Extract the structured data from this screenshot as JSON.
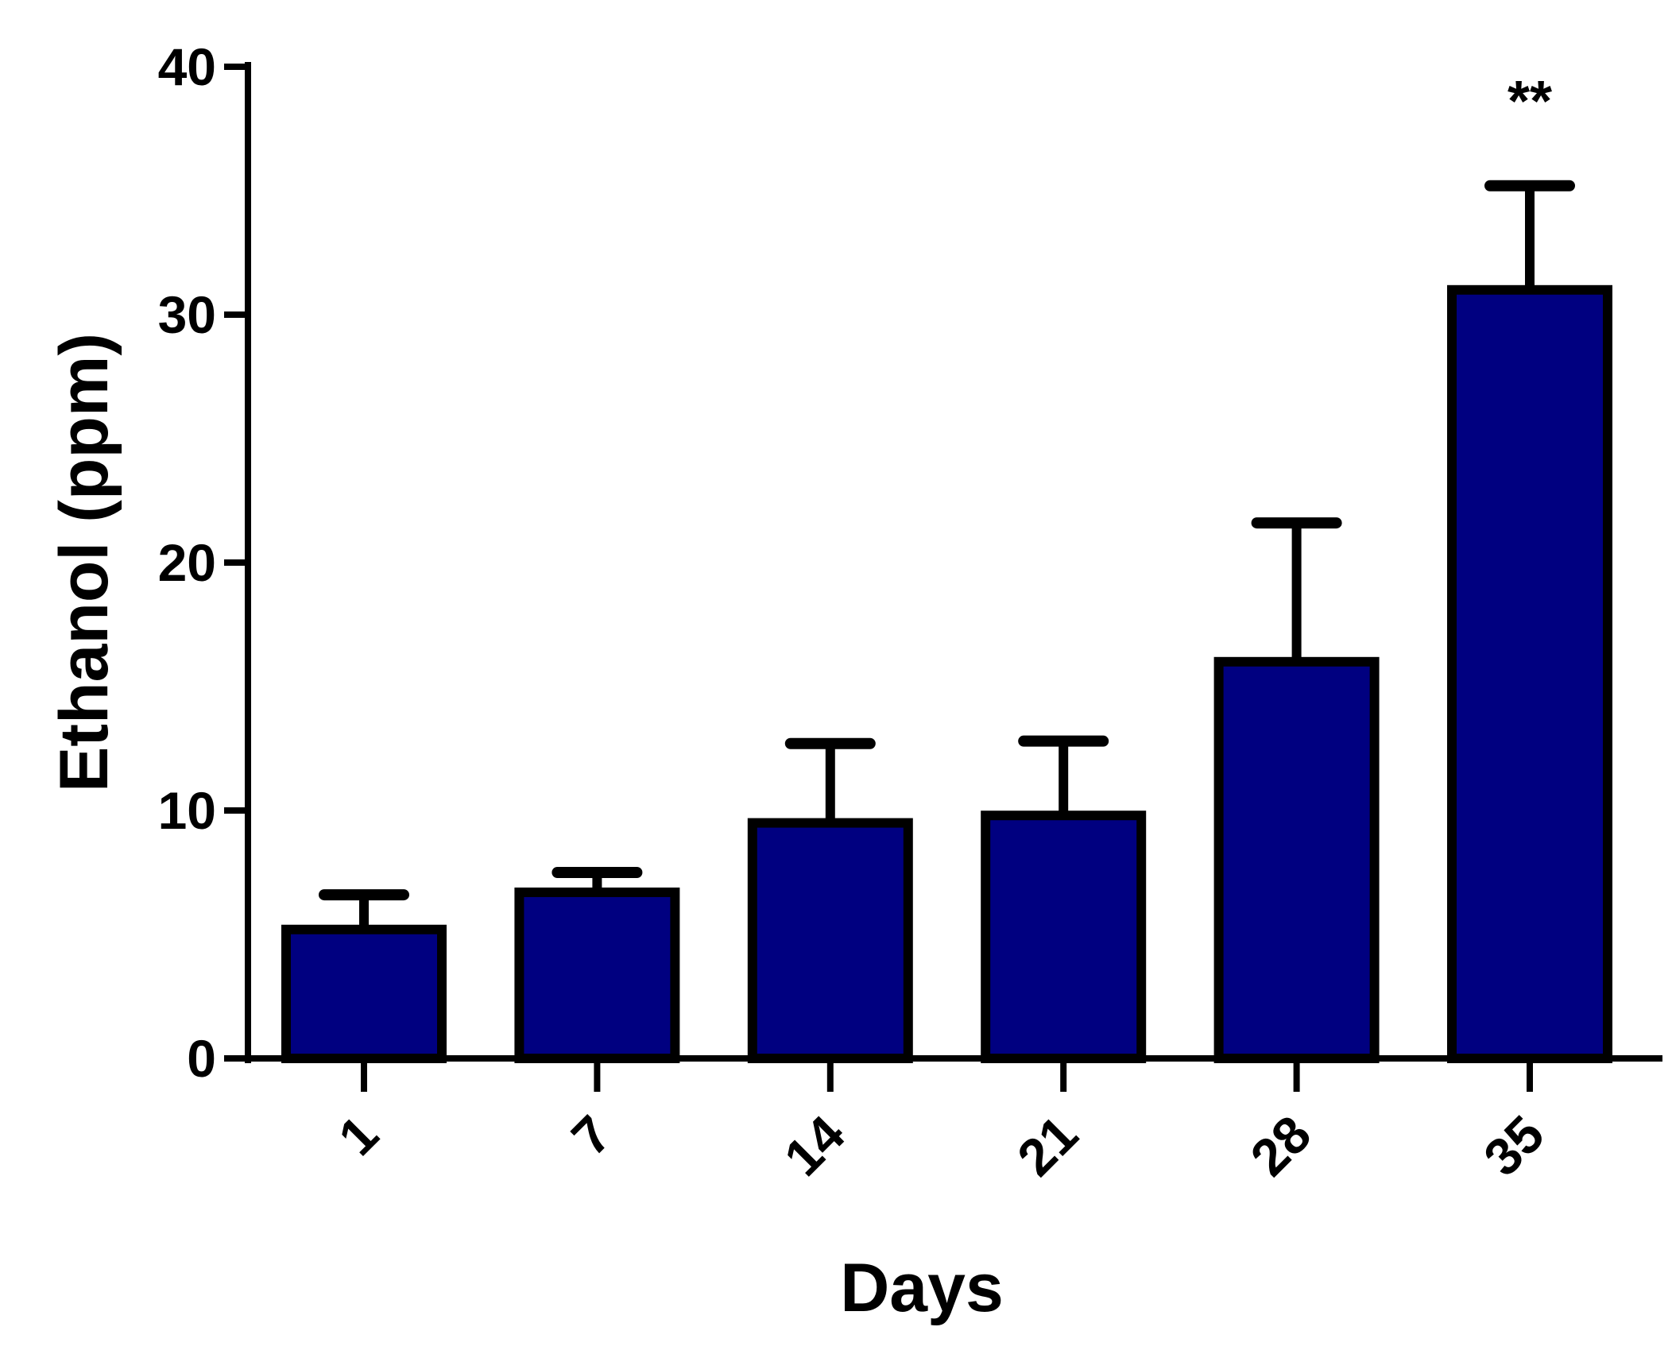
{
  "chart_data": {
    "type": "bar",
    "title": "",
    "xlabel": "Days",
    "ylabel": "Ethanol (ppm)",
    "categories": [
      "1",
      "7",
      "14",
      "21",
      "28",
      "35"
    ],
    "values": [
      5.2,
      6.7,
      9.5,
      9.8,
      16.0,
      31.0
    ],
    "error_upper": [
      6.6,
      7.5,
      12.7,
      12.8,
      21.6,
      35.2
    ],
    "annotations": [
      {
        "category": "35",
        "text": "**"
      }
    ],
    "ylim": [
      0,
      40
    ],
    "yticks": [
      0,
      10,
      20,
      30,
      40
    ],
    "yticks_labels": [
      "0",
      "10",
      "20",
      "30",
      "40"
    ],
    "grid": false,
    "legend": "none",
    "bar_color": "#000080",
    "edge_color": "#000000"
  }
}
